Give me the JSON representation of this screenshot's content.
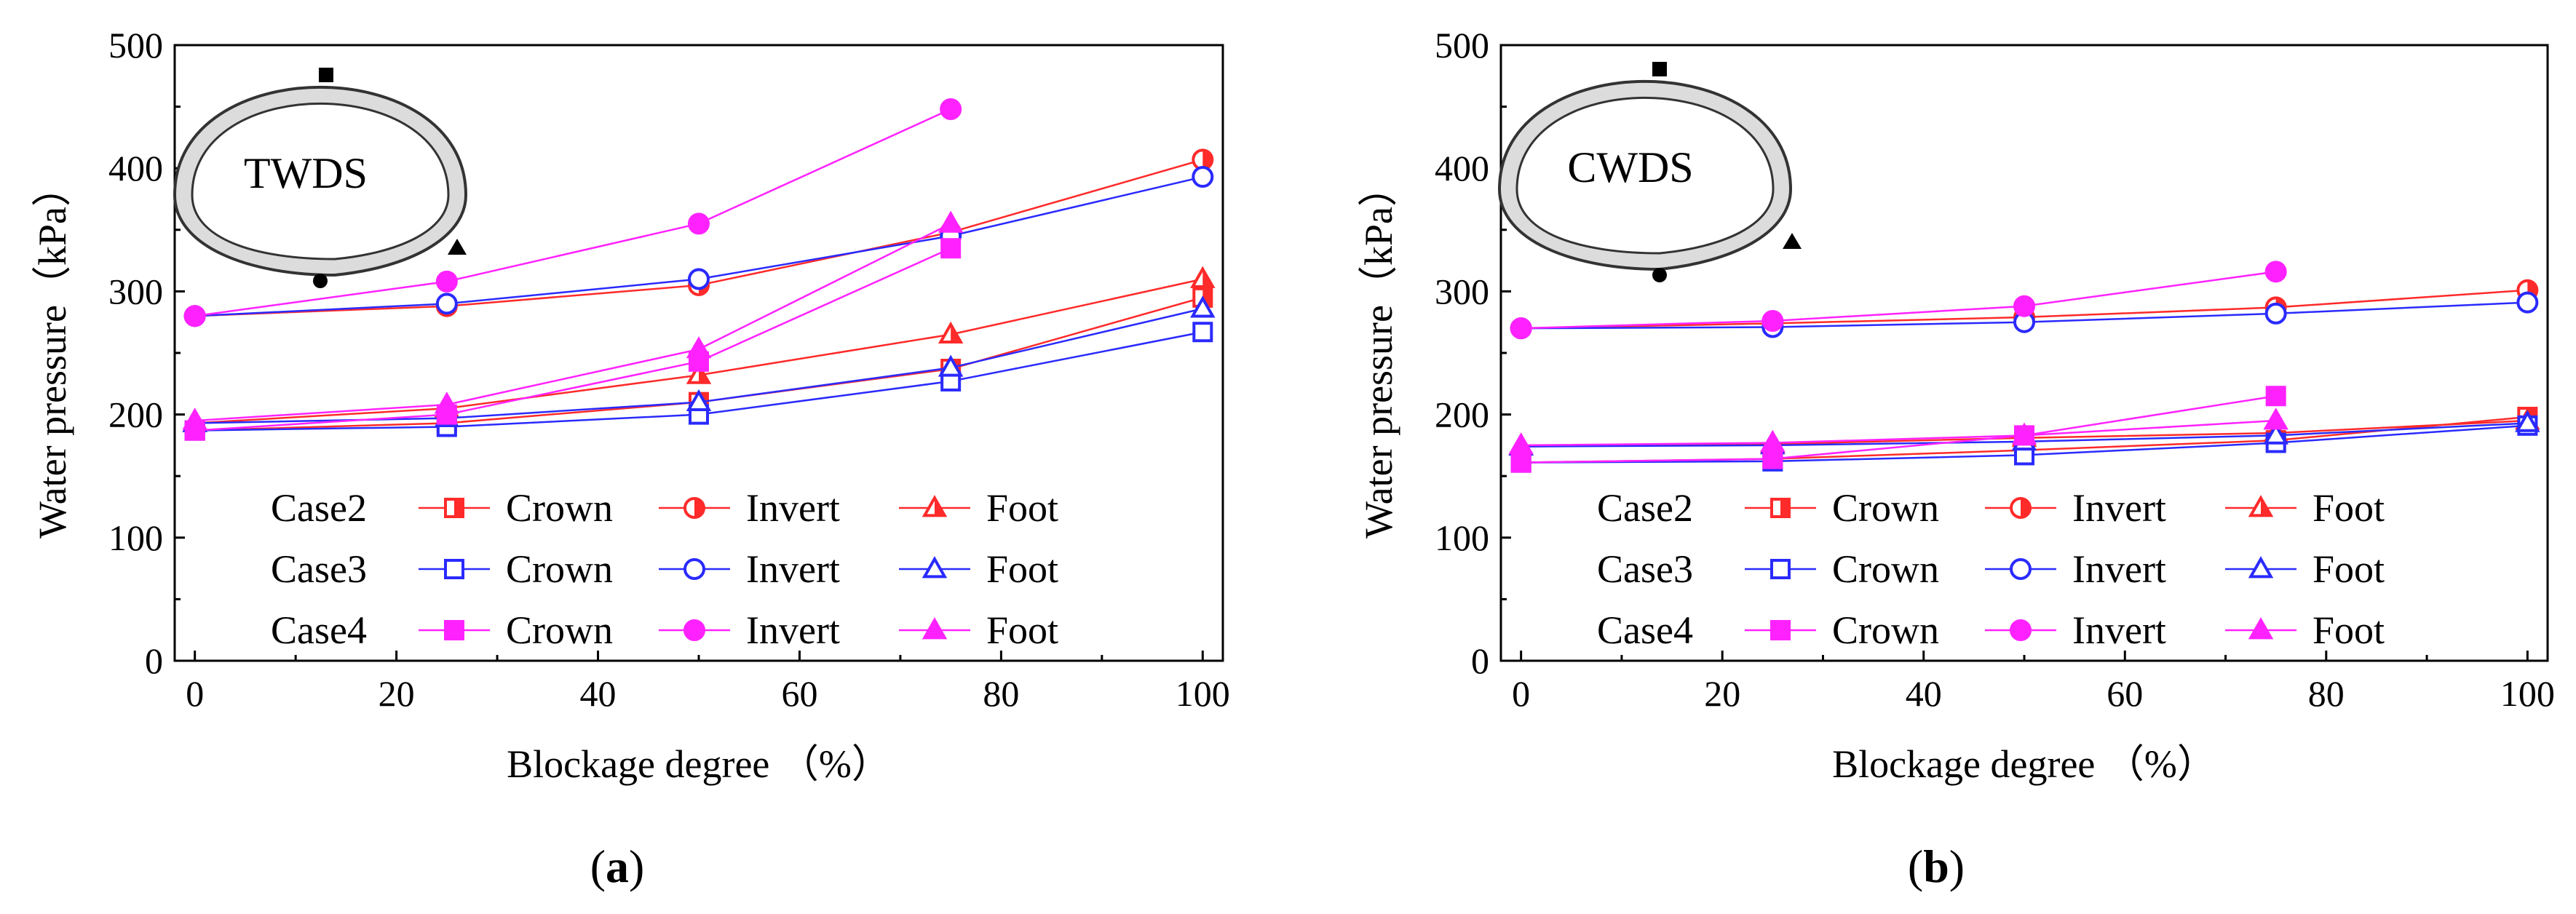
{
  "colors": {
    "red": "#ff2a2a",
    "blue": "#2a2aff",
    "magenta": "#ff22ff",
    "axis": "#000000"
  },
  "chart_data": [
    {
      "type": "line",
      "panel_label": "(a)",
      "panel_letter": "a",
      "inset_label": "TWDS",
      "xlabel": "Blockage degree （%）",
      "ylabel": "Water pressure（kPa）",
      "xlim": [
        -2,
        102
      ],
      "ylim": [
        0,
        500
      ],
      "xticks": [
        "0",
        "20",
        "40",
        "60",
        "80",
        "100"
      ],
      "yticks": [
        "0",
        "100",
        "200",
        "300",
        "400",
        "500"
      ],
      "series": [
        {
          "name": "Case2 Crown",
          "case": "Case2",
          "location": "Crown",
          "color": "red",
          "marker": "square-half",
          "x": [
            0,
            25,
            50,
            75,
            100
          ],
          "y": [
            187,
            193,
            210,
            237,
            295
          ]
        },
        {
          "name": "Case2 Invert",
          "case": "Case2",
          "location": "Invert",
          "color": "red",
          "marker": "circle-half",
          "x": [
            0,
            25,
            50,
            75,
            100
          ],
          "y": [
            280,
            288,
            305,
            348,
            407
          ]
        },
        {
          "name": "Case2 Foot",
          "case": "Case2",
          "location": "Foot",
          "color": "red",
          "marker": "triangle-half",
          "x": [
            0,
            25,
            50,
            75,
            100
          ],
          "y": [
            193,
            205,
            232,
            265,
            310
          ]
        },
        {
          "name": "Case3 Crown",
          "case": "Case3",
          "location": "Crown",
          "color": "blue",
          "marker": "square-open",
          "x": [
            0,
            25,
            50,
            75,
            100
          ],
          "y": [
            187,
            190,
            200,
            227,
            267
          ]
        },
        {
          "name": "Case3 Invert",
          "case": "Case3",
          "location": "Invert",
          "color": "blue",
          "marker": "circle-open",
          "x": [
            0,
            25,
            50,
            75,
            100
          ],
          "y": [
            280,
            290,
            310,
            345,
            393
          ]
        },
        {
          "name": "Case3 Foot",
          "case": "Case3",
          "location": "Foot",
          "color": "blue",
          "marker": "triangle-open",
          "x": [
            0,
            25,
            50,
            75,
            100
          ],
          "y": [
            193,
            197,
            210,
            238,
            286
          ]
        },
        {
          "name": "Case4 Crown",
          "case": "Case4",
          "location": "Crown",
          "color": "magenta",
          "marker": "square-fill",
          "x": [
            0,
            25,
            50,
            75
          ],
          "y": [
            187,
            200,
            243,
            335
          ]
        },
        {
          "name": "Case4 Invert",
          "case": "Case4",
          "location": "Invert",
          "color": "magenta",
          "marker": "circle-fill",
          "x": [
            0,
            25,
            50,
            75
          ],
          "y": [
            280,
            308,
            355,
            448
          ]
        },
        {
          "name": "Case4 Foot",
          "case": "Case4",
          "location": "Foot",
          "color": "magenta",
          "marker": "triangle-fill",
          "x": [
            0,
            25,
            50,
            75
          ],
          "y": [
            195,
            208,
            253,
            355
          ]
        }
      ]
    },
    {
      "type": "line",
      "panel_label": "(b)",
      "panel_letter": "b",
      "inset_label": "CWDS",
      "xlabel": "Blockage degree （%）",
      "ylabel": "Water pressure（kPa）",
      "xlim": [
        -2,
        102
      ],
      "ylim": [
        0,
        500
      ],
      "xticks": [
        "0",
        "20",
        "40",
        "60",
        "80",
        "100"
      ],
      "yticks": [
        "0",
        "100",
        "200",
        "300",
        "400",
        "500"
      ],
      "series": [
        {
          "name": "Case2 Crown",
          "case": "Case2",
          "location": "Crown",
          "color": "red",
          "marker": "square-half",
          "x": [
            0,
            25,
            50,
            75,
            100
          ],
          "y": [
            161,
            164,
            171,
            179,
            198
          ]
        },
        {
          "name": "Case2 Invert",
          "case": "Case2",
          "location": "Invert",
          "color": "red",
          "marker": "circle-half",
          "x": [
            0,
            25,
            50,
            75,
            100
          ],
          "y": [
            270,
            274,
            279,
            287,
            301
          ]
        },
        {
          "name": "Case2 Foot",
          "case": "Case2",
          "location": "Foot",
          "color": "red",
          "marker": "triangle-half",
          "x": [
            0,
            25,
            50,
            75,
            100
          ],
          "y": [
            174,
            176,
            181,
            185,
            195
          ]
        },
        {
          "name": "Case3 Crown",
          "case": "Case3",
          "location": "Crown",
          "color": "blue",
          "marker": "square-open",
          "x": [
            0,
            25,
            50,
            75,
            100
          ],
          "y": [
            161,
            162,
            167,
            177,
            191
          ]
        },
        {
          "name": "Case3 Invert",
          "case": "Case3",
          "location": "Invert",
          "color": "blue",
          "marker": "circle-open",
          "x": [
            0,
            25,
            50,
            75,
            100
          ],
          "y": [
            270,
            271,
            275,
            282,
            291
          ]
        },
        {
          "name": "Case3 Foot",
          "case": "Case3",
          "location": "Foot",
          "color": "blue",
          "marker": "triangle-open",
          "x": [
            0,
            25,
            50,
            75,
            100
          ],
          "y": [
            174,
            175,
            178,
            183,
            193
          ]
        },
        {
          "name": "Case4 Crown",
          "case": "Case4",
          "location": "Crown",
          "color": "magenta",
          "marker": "square-fill",
          "x": [
            0,
            25,
            50,
            75
          ],
          "y": [
            161,
            164,
            183,
            215
          ]
        },
        {
          "name": "Case4 Invert",
          "case": "Case4",
          "location": "Invert",
          "color": "magenta",
          "marker": "circle-fill",
          "x": [
            0,
            25,
            50,
            75
          ],
          "y": [
            270,
            276,
            288,
            316
          ]
        },
        {
          "name": "Case4 Foot",
          "case": "Case4",
          "location": "Foot",
          "color": "magenta",
          "marker": "triangle-fill",
          "x": [
            0,
            25,
            50,
            75
          ],
          "y": [
            175,
            177,
            183,
            195
          ]
        }
      ]
    }
  ],
  "legend": {
    "rows": [
      {
        "case": "Case2",
        "color": "red",
        "items": [
          {
            "label": "Crown",
            "marker": "square-half"
          },
          {
            "label": "Invert",
            "marker": "circle-half"
          },
          {
            "label": "Foot",
            "marker": "triangle-half"
          }
        ]
      },
      {
        "case": "Case3",
        "color": "blue",
        "items": [
          {
            "label": "Crown",
            "marker": "square-open"
          },
          {
            "label": "Invert",
            "marker": "circle-open"
          },
          {
            "label": "Foot",
            "marker": "triangle-open"
          }
        ]
      },
      {
        "case": "Case4",
        "color": "magenta",
        "items": [
          {
            "label": "Crown",
            "marker": "square-fill"
          },
          {
            "label": "Invert",
            "marker": "circle-fill"
          },
          {
            "label": "Foot",
            "marker": "triangle-fill"
          }
        ]
      }
    ]
  }
}
